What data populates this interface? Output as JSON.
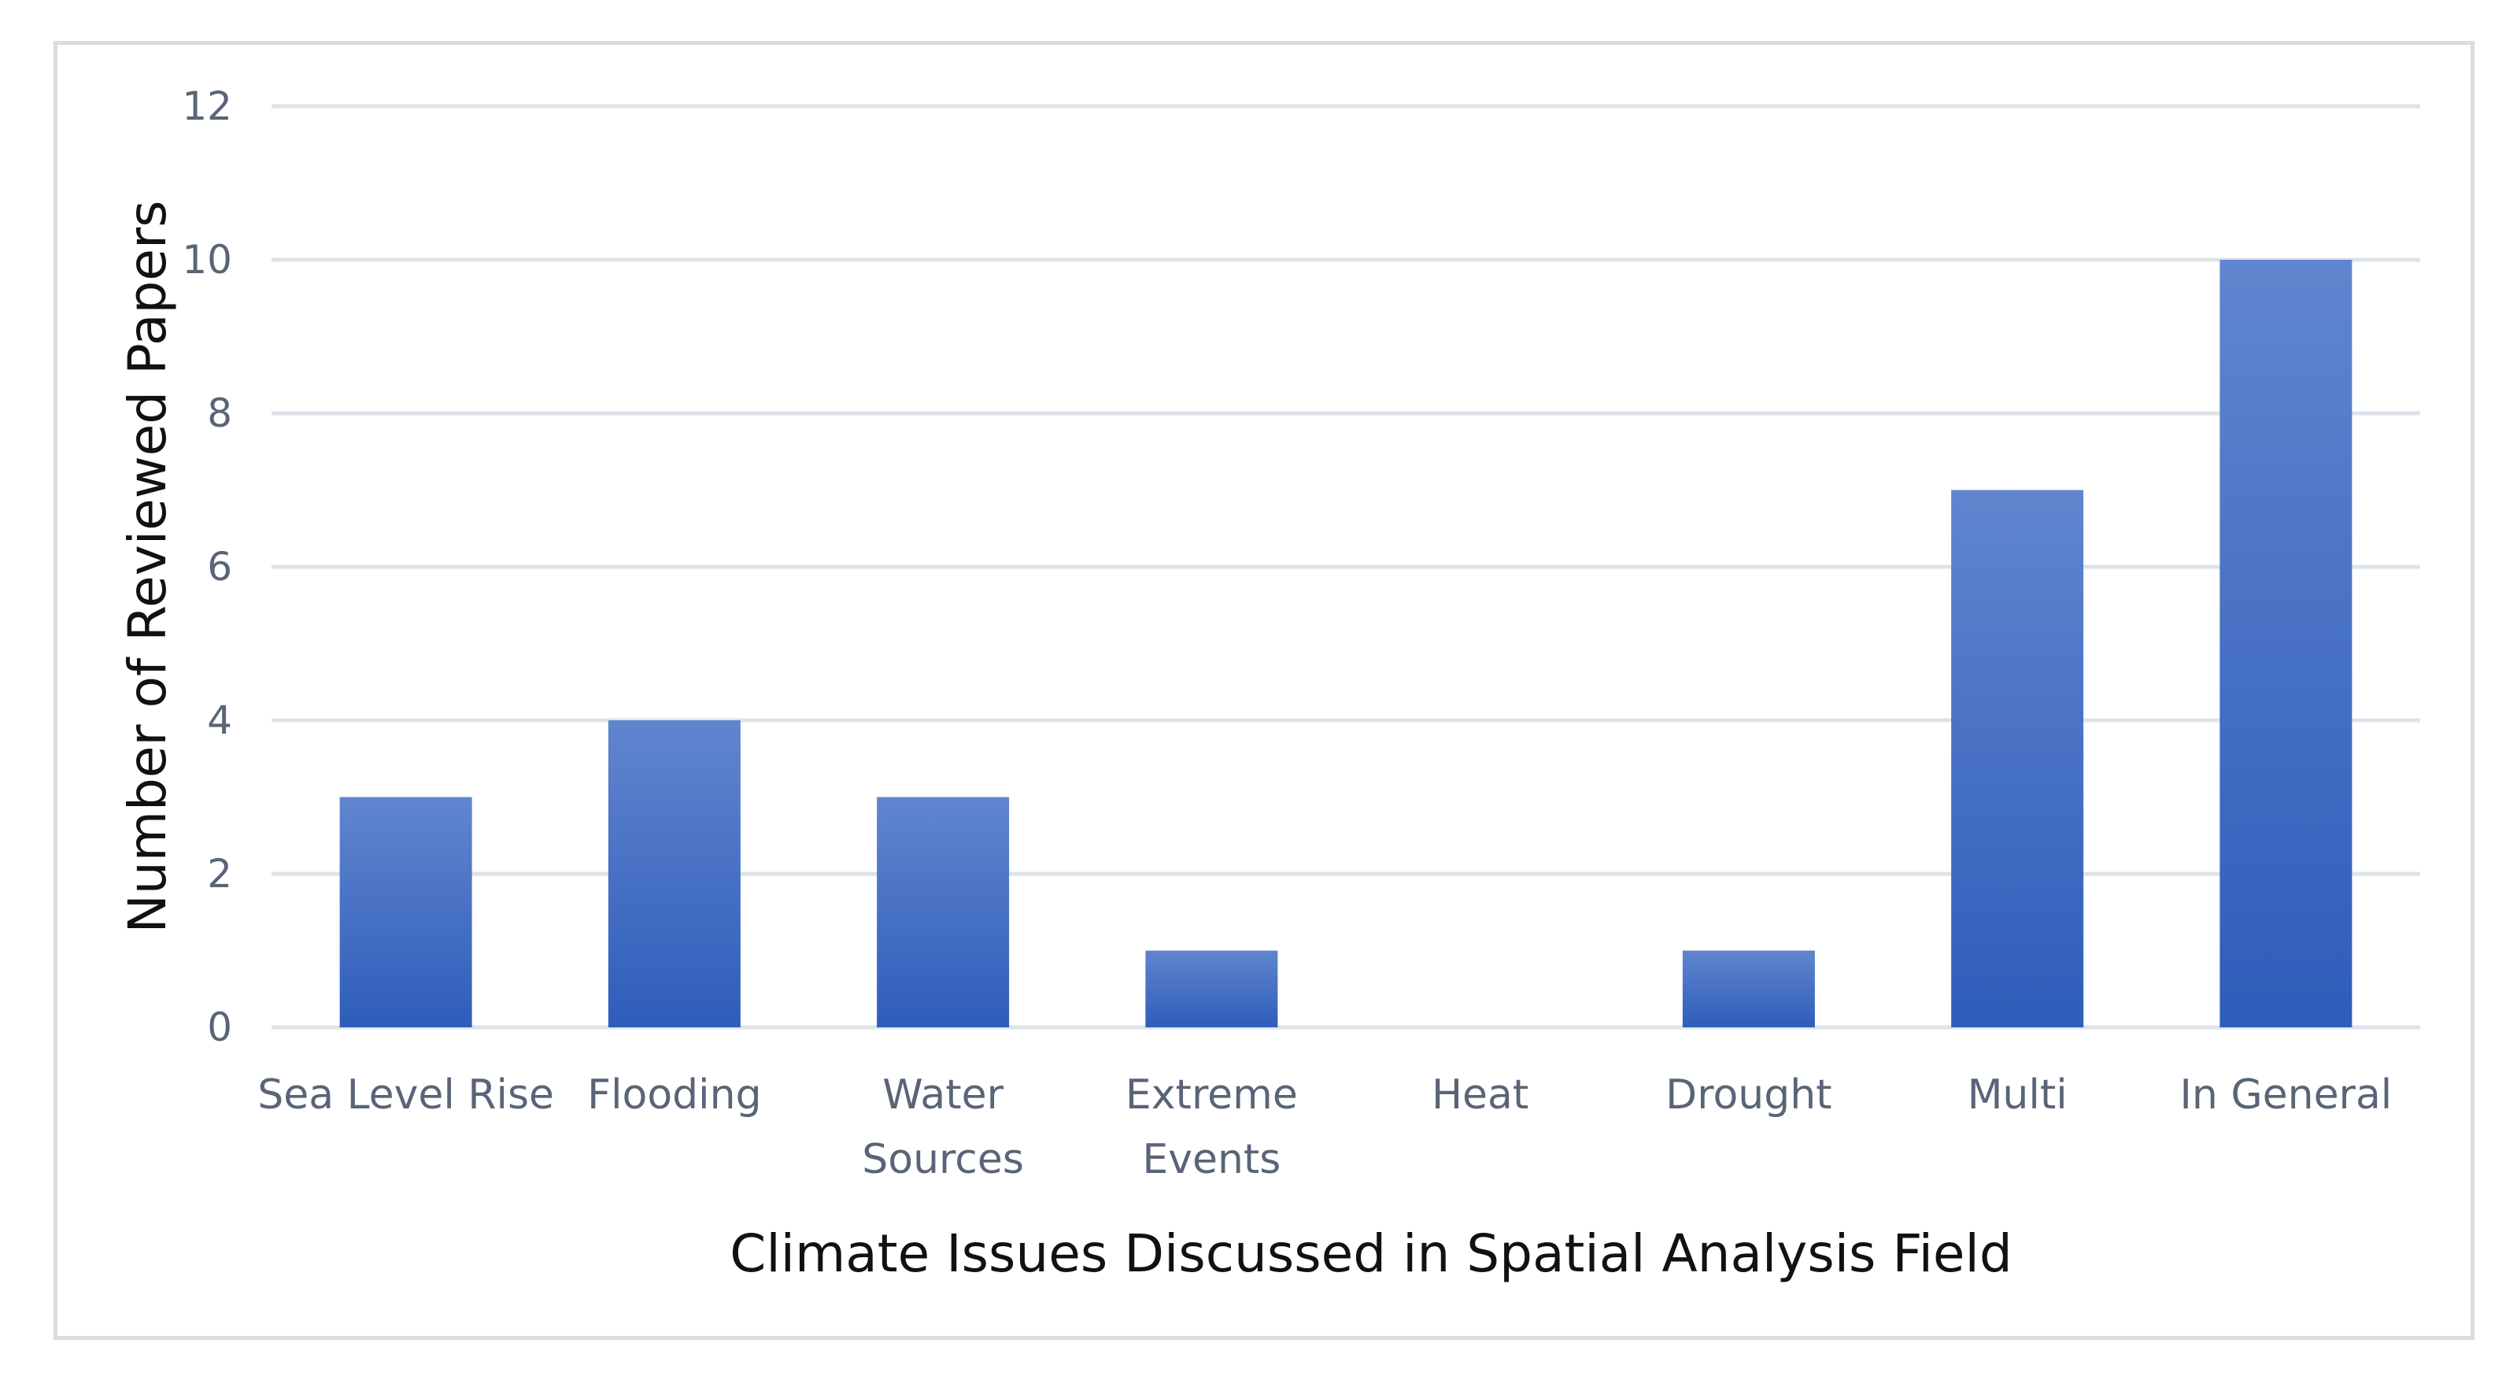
{
  "chart_data": {
    "type": "bar",
    "title": "",
    "categories": [
      [
        "Sea Level Rise"
      ],
      [
        "Flooding"
      ],
      [
        "Water",
        "Sources"
      ],
      [
        "Extreme",
        "Events"
      ],
      [
        "Heat"
      ],
      [
        "Drought"
      ],
      [
        "Multi"
      ],
      [
        "In General"
      ]
    ],
    "values": [
      3,
      4,
      3,
      1,
      0,
      1,
      7,
      10
    ],
    "xlabel": "Climate Issues  Discussed in Spatial Analysis Field",
    "ylabel": "Number of Reviewed  Papers",
    "ylim": [
      0,
      12
    ],
    "yticks": [
      0,
      2,
      4,
      6,
      8,
      10,
      12
    ],
    "grid": true,
    "legend": "none",
    "colors": {
      "bar_top": "#6185cf",
      "bar_bottom": "#2e5dba",
      "grid": "#dde3ea",
      "tick_text": "#5a6478",
      "title_text": "#111111"
    }
  }
}
